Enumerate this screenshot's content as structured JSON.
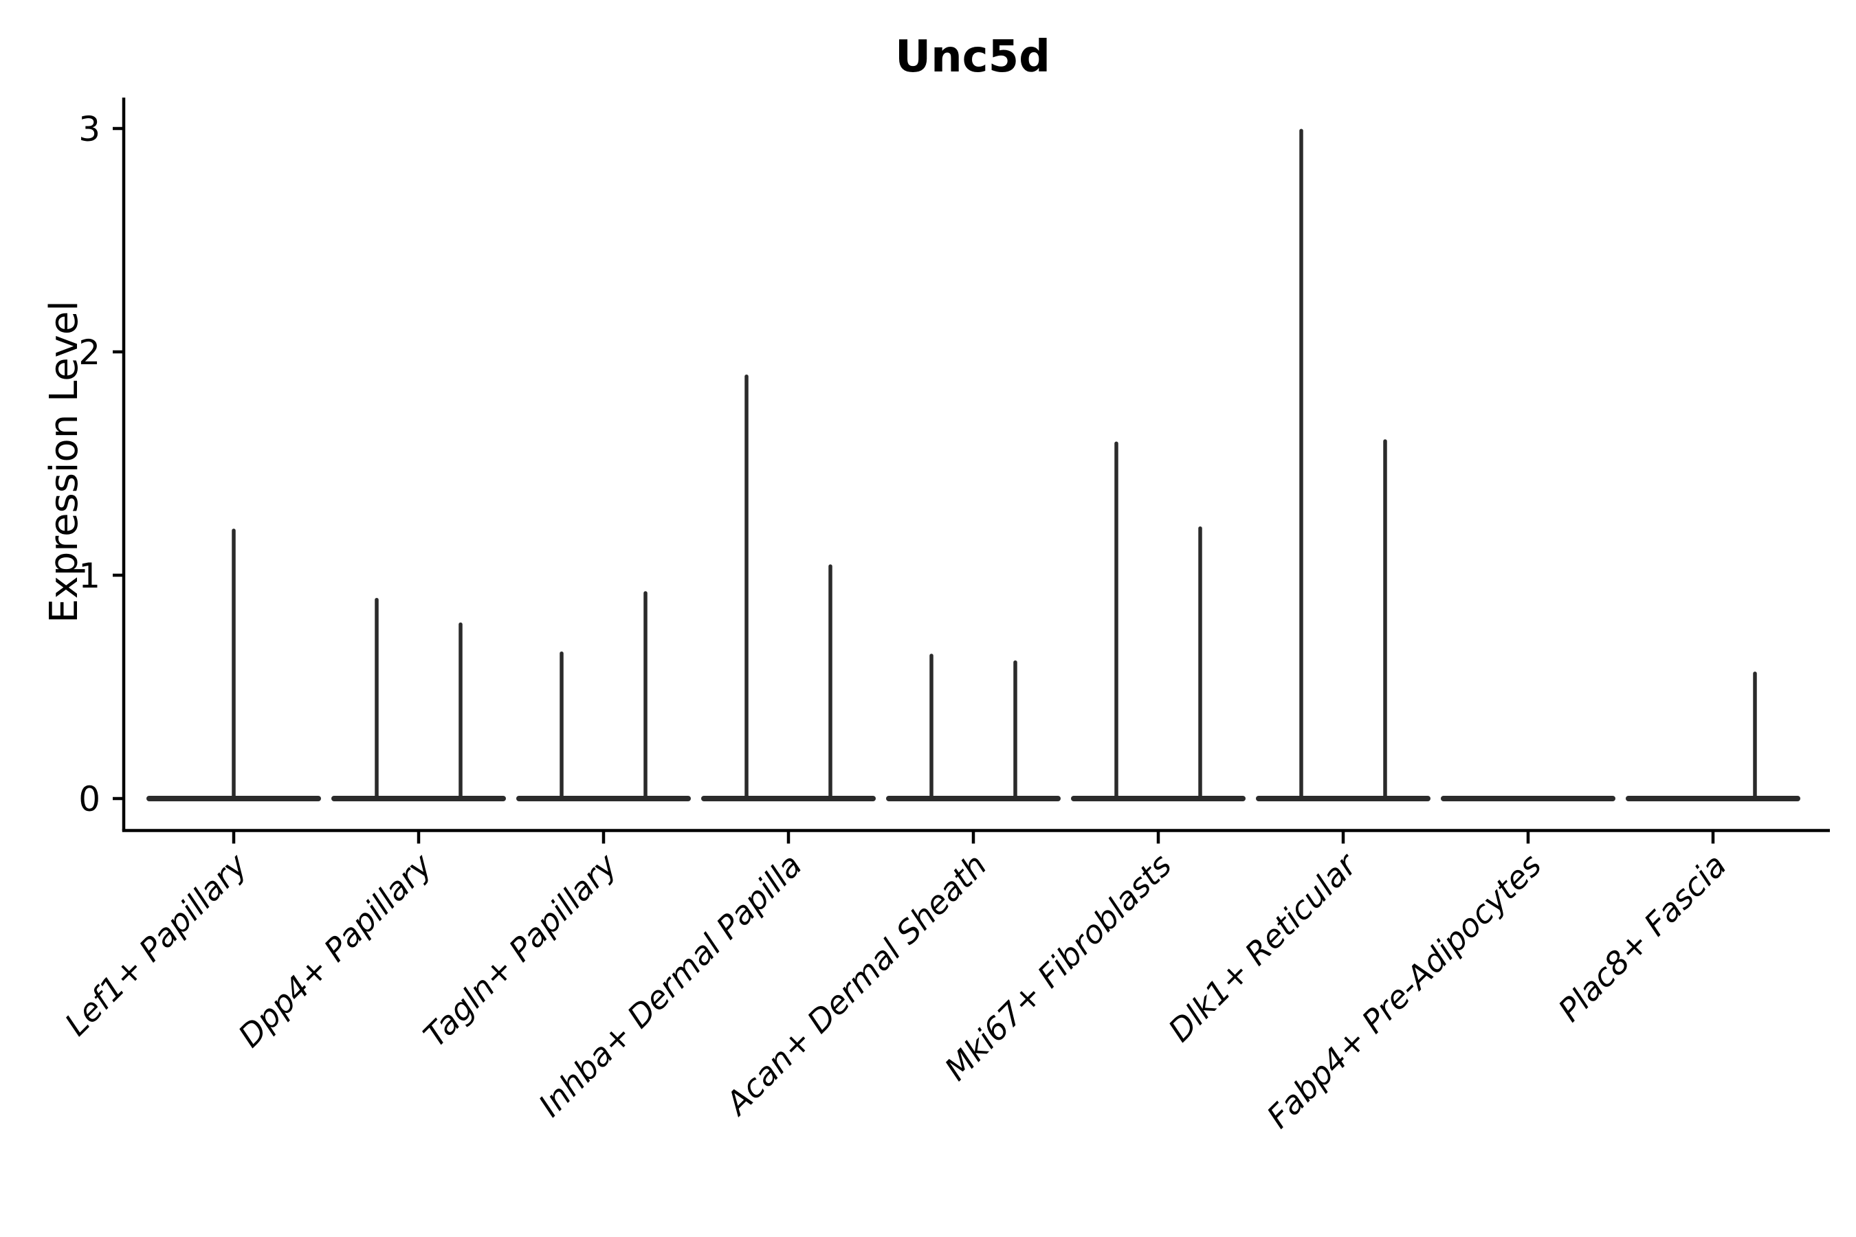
{
  "figure": {
    "title": "Unc5d",
    "y_axis_label": "Expression Level",
    "background_color": "#ffffff",
    "axis_color": "#000000",
    "text_color": "#000000",
    "violin_color": "#2b2b2b"
  },
  "chart_data": {
    "type": "violin",
    "title": "Unc5d",
    "xlabel": "",
    "ylabel": "Expression Level",
    "ylim": [
      -0.15,
      3.1
    ],
    "yticks": [
      0,
      1,
      2,
      3
    ],
    "grid": false,
    "legend": false,
    "categories": [
      "Lef1+ Papillary",
      "Dpp4+ Papillary",
      "Tagln+ Papillary",
      "Inhba+ Dermal Papilla",
      "Acan+ Dermal Sheath",
      "Mki67+ Fibroblasts",
      "Dlk1+ Reticular",
      "Fabp4+ Pre-Adipocytes",
      "Plac8+ Fascia"
    ],
    "violins": [
      {
        "category": "Lef1+ Papillary",
        "base_value": 0,
        "spikes": [
          {
            "position": "center",
            "max": 1.2
          }
        ]
      },
      {
        "category": "Dpp4+ Papillary",
        "base_value": 0,
        "spikes": [
          {
            "position": "left",
            "max": 0.89
          },
          {
            "position": "right",
            "max": 0.78
          }
        ]
      },
      {
        "category": "Tagln+ Papillary",
        "base_value": 0,
        "spikes": [
          {
            "position": "left",
            "max": 0.65
          },
          {
            "position": "right",
            "max": 0.92
          }
        ]
      },
      {
        "category": "Inhba+ Dermal Papilla",
        "base_value": 0,
        "spikes": [
          {
            "position": "left",
            "max": 1.89
          },
          {
            "position": "right",
            "max": 1.04
          }
        ]
      },
      {
        "category": "Acan+ Dermal Sheath",
        "base_value": 0,
        "spikes": [
          {
            "position": "left",
            "max": 0.64
          },
          {
            "position": "right",
            "max": 0.61
          }
        ]
      },
      {
        "category": "Mki67+ Fibroblasts",
        "base_value": 0,
        "spikes": [
          {
            "position": "left",
            "max": 1.59
          },
          {
            "position": "right",
            "max": 1.21
          }
        ]
      },
      {
        "category": "Dlk1+ Reticular",
        "base_value": 0,
        "spikes": [
          {
            "position": "left",
            "max": 2.99
          },
          {
            "position": "right",
            "max": 1.6
          }
        ]
      },
      {
        "category": "Fabp4+ Pre-Adipocytes",
        "base_value": 0,
        "spikes": []
      },
      {
        "category": "Plac8+ Fascia",
        "base_value": 0,
        "spikes": [
          {
            "position": "right",
            "max": 0.56
          }
        ]
      }
    ],
    "note": "Each violin is flat at expression 0 (most cells) with thin density spikes reaching the maximum expression value."
  }
}
